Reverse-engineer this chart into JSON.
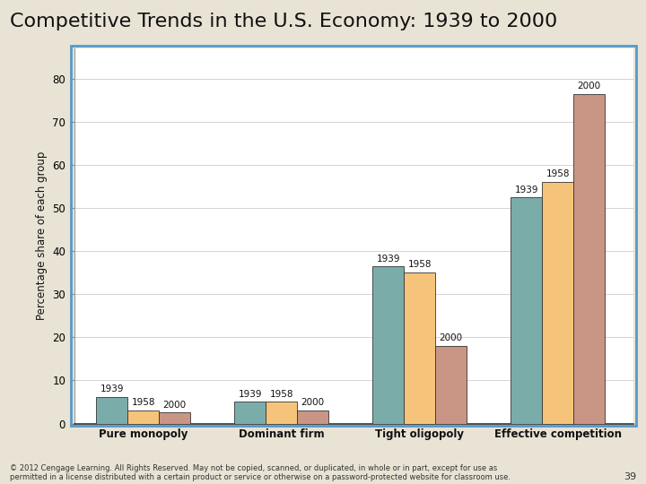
{
  "title": "Competitive Trends in the U.S. Economy: 1939 to 2000",
  "categories": [
    "Pure monopoly",
    "Dominant firm",
    "Tight oligopoly",
    "Effective competition"
  ],
  "years": [
    "1939",
    "1958",
    "2000"
  ],
  "values": {
    "Pure monopoly": [
      6.2,
      3.1,
      2.5
    ],
    "Dominant firm": [
      5.0,
      5.0,
      3.0
    ],
    "Tight oligopoly": [
      36.4,
      35.0,
      18.0
    ],
    "Effective competition": [
      52.4,
      56.0,
      76.5
    ]
  },
  "bar_colors": [
    "#7aadaa",
    "#f5c47a",
    "#c99585"
  ],
  "bar_edge_color": "#333333",
  "plot_bg_color": "#ffffff",
  "outer_bg_color": "#e8e3d5",
  "title_fontsize": 16,
  "axis_label_fontsize": 8.5,
  "tick_fontsize": 8.5,
  "anno_fontsize": 7.5,
  "ylabel": "Percentage share of each group",
  "ylim": [
    0,
    87
  ],
  "yticks": [
    0,
    10,
    20,
    30,
    40,
    50,
    60,
    70,
    80
  ],
  "footer_text": "© 2012 Cengage Learning. All Rights Reserved. May not be copied, scanned, or duplicated, in whole or in part, except for use as\npermitted in a license distributed with a certain product or service or otherwise on a password-protected website for classroom use.",
  "page_number": "39",
  "border_color": "#5599cc"
}
